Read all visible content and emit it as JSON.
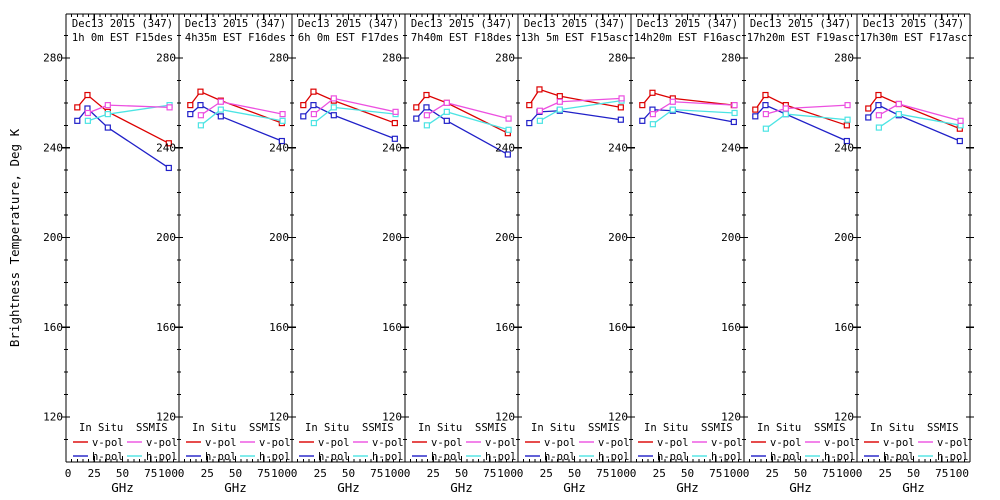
{
  "window": {
    "background": "#ffffff",
    "foreground": "#000000"
  },
  "chart_data": {
    "type": "line",
    "title": "Dec13 2015 (347)",
    "ylabel": "Brightness Temperature, Deg K",
    "xlabel": "GHz",
    "xlim": [
      0,
      100
    ],
    "xticks": [
      0,
      25,
      50,
      75,
      100
    ],
    "xtick_minor_step": 5,
    "ylim": [
      100,
      300
    ],
    "yticks": [
      120,
      160,
      200,
      240,
      280
    ],
    "ytick_minor_step": 10,
    "grid": false,
    "marker": "open-square",
    "colors": {
      "insitu_v": "#dc0000",
      "insitu_h": "#2020c8",
      "ssmis_v": "#ec50e0",
      "ssmis_h": "#4ce4e4",
      "axis": "#000000"
    },
    "legend": {
      "position": "bottom-inside-each-panel",
      "columns": [
        {
          "header": "In Situ",
          "entries": [
            {
              "label": "v-pol",
              "color_key": "insitu_v"
            },
            {
              "label": "h-pol",
              "color_key": "insitu_h"
            }
          ]
        },
        {
          "header": "SSMIS",
          "entries": [
            {
              "label": "v-pol",
              "color_key": "ssmis_v"
            },
            {
              "label": "h-pol",
              "color_key": "ssmis_h"
            }
          ]
        }
      ]
    },
    "in_situ_x_ghz": [
      10,
      19,
      37,
      91
    ],
    "ssmis_x_ghz": [
      19.35,
      37,
      91.655
    ],
    "panels": [
      {
        "subtitle": "1h 0m EST F15des",
        "insitu_v": [
          258,
          263.5,
          256,
          242
        ],
        "insitu_h": [
          252,
          257.5,
          249,
          231
        ],
        "ssmis_v": [
          255.5,
          259,
          258
        ],
        "ssmis_h": [
          252,
          255,
          259
        ]
      },
      {
        "subtitle": "4h35m EST F16des",
        "insitu_v": [
          259,
          265,
          261,
          251
        ],
        "insitu_h": [
          255,
          259,
          254,
          243
        ],
        "ssmis_v": [
          254.5,
          260.5,
          255
        ],
        "ssmis_h": [
          250,
          257,
          252
        ]
      },
      {
        "subtitle": "6h 0m EST F17des",
        "insitu_v": [
          259,
          265,
          261,
          251
        ],
        "insitu_h": [
          254,
          259,
          254.5,
          244
        ],
        "ssmis_v": [
          255,
          262,
          256
        ],
        "ssmis_h": [
          251,
          258,
          255
        ]
      },
      {
        "subtitle": "7h40m EST F18des",
        "insitu_v": [
          258,
          263.5,
          260,
          246.5
        ],
        "insitu_h": [
          253,
          258,
          252,
          237
        ],
        "ssmis_v": [
          254.5,
          260,
          253
        ],
        "ssmis_h": [
          250,
          256,
          248
        ]
      },
      {
        "subtitle": "13h 5m EST F15asc",
        "insitu_v": [
          259,
          266,
          263,
          258
        ],
        "insitu_h": [
          251,
          256,
          256.5,
          252.5
        ],
        "ssmis_v": [
          256.5,
          260.5,
          262
        ],
        "ssmis_h": [
          252,
          257,
          261
        ]
      },
      {
        "subtitle": "14h20m EST F16asc",
        "insitu_v": [
          259,
          264.5,
          262,
          259
        ],
        "insitu_h": [
          252,
          257,
          256.5,
          251.5
        ],
        "ssmis_v": [
          255,
          260.5,
          259
        ],
        "ssmis_h": [
          250.5,
          257,
          255.5
        ]
      },
      {
        "subtitle": "17h20m EST F19asc",
        "insitu_v": [
          257,
          263.5,
          259,
          250
        ],
        "insitu_h": [
          254,
          259,
          255,
          243
        ],
        "ssmis_v": [
          255,
          257.5,
          259
        ],
        "ssmis_h": [
          248.5,
          255,
          252.5
        ]
      },
      {
        "subtitle": "17h30m EST F17asc",
        "insitu_v": [
          257.5,
          263.5,
          259.5,
          248.5
        ],
        "insitu_h": [
          253.5,
          259,
          254.5,
          243
        ],
        "ssmis_v": [
          254.5,
          259.5,
          252
        ],
        "ssmis_h": [
          249,
          255,
          250
        ]
      }
    ]
  }
}
